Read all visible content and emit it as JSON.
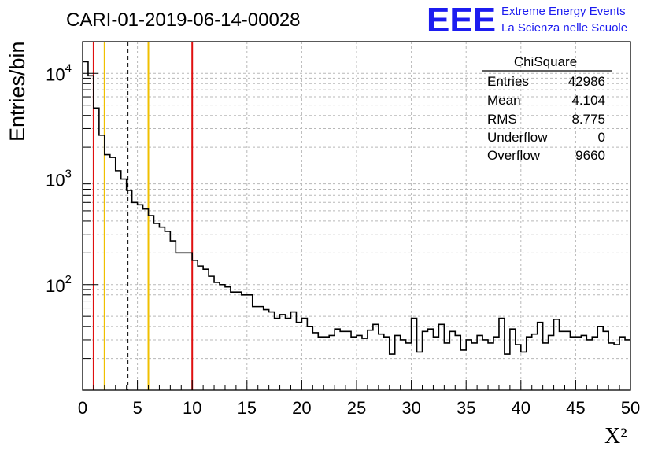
{
  "chart_data": {
    "type": "histogram",
    "title": "CARI-01-2019-06-14-00028",
    "xlabel": "X²",
    "ylabel": "Entries/bin",
    "xlim": [
      0,
      50
    ],
    "ylim_log10": [
      1.0,
      4.3
    ],
    "y_scale": "log",
    "grid": true,
    "bin_width": 0.5,
    "x_ticks": [
      "0",
      "5",
      "10",
      "15",
      "20",
      "25",
      "30",
      "35",
      "40",
      "45",
      "50"
    ],
    "y_ticks": [
      {
        "base": "10",
        "exp": "2",
        "value": 100
      },
      {
        "base": "10",
        "exp": "3",
        "value": 1000
      },
      {
        "base": "10",
        "exp": "4",
        "value": 10000
      }
    ],
    "bin_counts": [
      12900,
      9500,
      4700,
      2600,
      1700,
      1600,
      1200,
      1000,
      780,
      600,
      570,
      520,
      450,
      380,
      350,
      320,
      260,
      200,
      200,
      200,
      170,
      150,
      140,
      120,
      105,
      100,
      95,
      85,
      85,
      80,
      80,
      62,
      62,
      58,
      55,
      48,
      52,
      48,
      55,
      44,
      48,
      40,
      35,
      32,
      32,
      33,
      38,
      36,
      36,
      32,
      33,
      31,
      37,
      42,
      34,
      32,
      22,
      33,
      30,
      28,
      48,
      23,
      36,
      38,
      32,
      42,
      28,
      36,
      33,
      24,
      30,
      28,
      33,
      30,
      28,
      32,
      48,
      22,
      38,
      27,
      23,
      32,
      34,
      44,
      28,
      33,
      47,
      36,
      36,
      32,
      32,
      33,
      30,
      32,
      40,
      36,
      28,
      27,
      32,
      30
    ],
    "vertical_lines": [
      {
        "x": 1,
        "color": "#e01010",
        "style": "solid"
      },
      {
        "x": 2,
        "color": "#f0c000",
        "style": "solid"
      },
      {
        "x": 4.104,
        "color": "#000000",
        "style": "dashed"
      },
      {
        "x": 6,
        "color": "#f0c000",
        "style": "solid"
      },
      {
        "x": 10,
        "color": "#e01010",
        "style": "solid"
      }
    ],
    "stats_box": {
      "title": "ChiSquare",
      "rows": [
        {
          "label": "Entries",
          "value": "42986"
        },
        {
          "label": "Mean",
          "value": "4.104"
        },
        {
          "label": "RMS",
          "value": "8.775"
        },
        {
          "label": "Underflow",
          "value": "0"
        },
        {
          "label": "Overflow",
          "value": "9660"
        }
      ]
    }
  },
  "logo": {
    "mark": "EEE",
    "line1": "Extreme Energy Events",
    "line2": "La Scienza nelle Scuole",
    "color": "#1c1cf0"
  }
}
